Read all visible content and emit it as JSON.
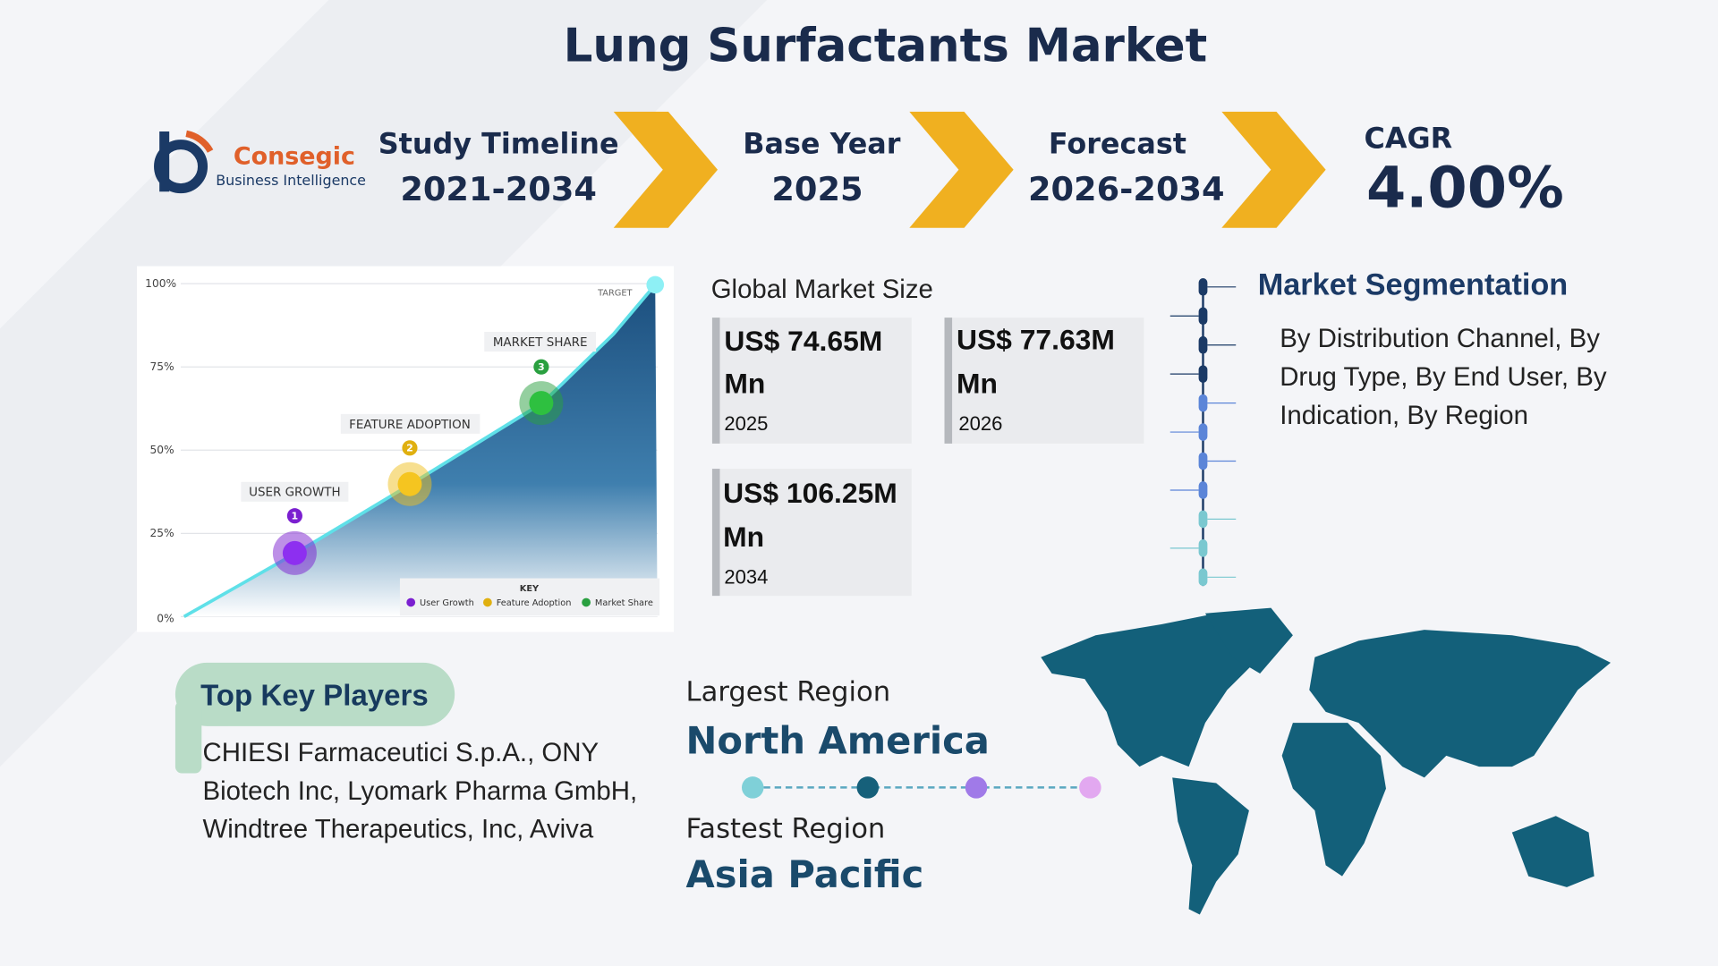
{
  "title": "Lung Surfactants Market",
  "logo": {
    "name": "Consegic",
    "tagline": "Business Intelligence"
  },
  "timeline": [
    {
      "label": "Study Timeline",
      "value": "2021-2034"
    },
    {
      "label": "Base Year",
      "value": "2025"
    },
    {
      "label": "Forecast",
      "value": "2026-2034"
    }
  ],
  "cagr": {
    "label": "CAGR",
    "value": "4.00%"
  },
  "illustration": {
    "ticks": [
      "100%",
      "75%",
      "50%",
      "25%",
      "0%"
    ],
    "target": "TARGET",
    "stages": [
      {
        "num": "1",
        "label": "USER GROWTH"
      },
      {
        "num": "2",
        "label": "FEATURE ADOPTION"
      },
      {
        "num": "3",
        "label": "MARKET SHARE"
      }
    ],
    "key": {
      "title": "KEY",
      "items": [
        "User Growth",
        "Feature Adoption",
        "Market Share"
      ]
    }
  },
  "market_size": {
    "title": "Global Market Size",
    "items": [
      {
        "value": "US$ 74.65M",
        "unit": "Mn",
        "year": "2025"
      },
      {
        "value": "US$ 77.63M",
        "unit": "Mn",
        "year": "2026"
      },
      {
        "value": "US$ 106.25M",
        "unit": "Mn",
        "year": "2034"
      }
    ]
  },
  "segmentation": {
    "title": "Market Segmentation",
    "text": "By Distribution Channel, By Drug Type, By End User, By Indication, By Region"
  },
  "key_players": {
    "title": "Top Key Players",
    "text": "CHIESI Farmaceutici S.p.A., ONY Biotech Inc, Lyomark Pharma GmbH, Windtree Therapeutics, Inc, Aviva"
  },
  "regions": {
    "largest_label": "Largest Region",
    "largest": "North America",
    "fastest_label": "Fastest Region",
    "fastest": "Asia Pacific"
  }
}
